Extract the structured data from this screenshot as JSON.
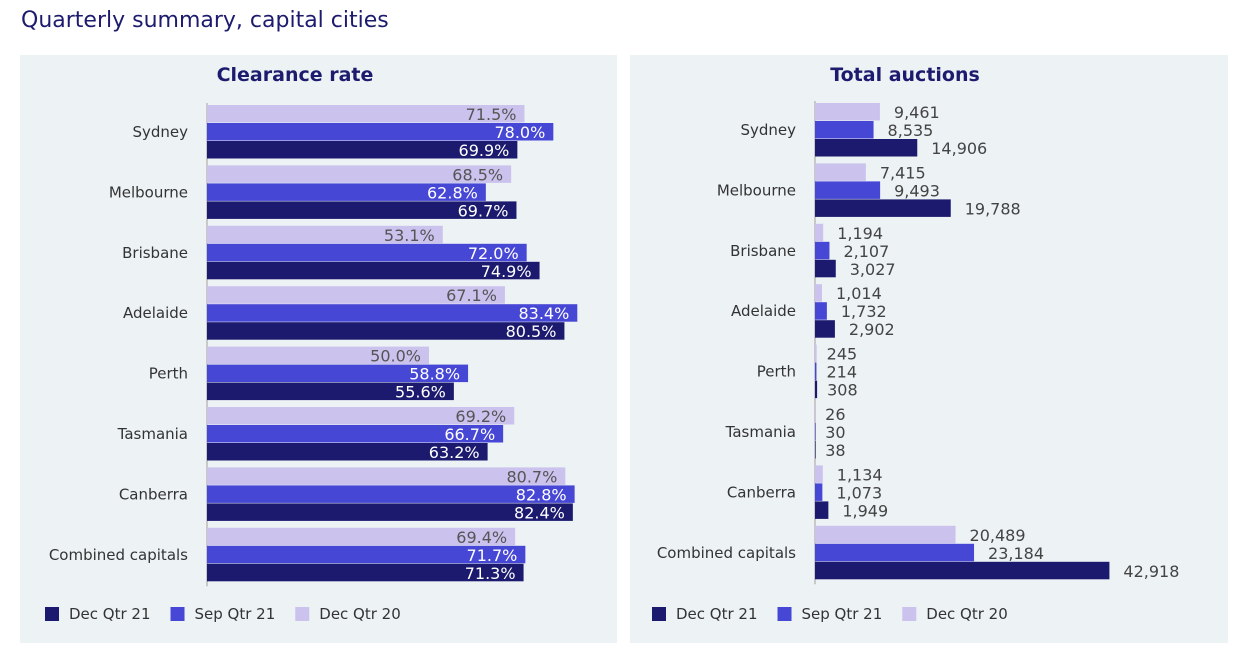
{
  "page_title": "Quarterly summary, capital cities",
  "colors": {
    "Dec Qtr 21": "#1b1a6e",
    "Sep Qtr 21": "#4747d6",
    "Dec Qtr 20": "#cbc2ee",
    "panel": "#edf2f5",
    "title": "#1d1b6e"
  },
  "chart_data": [
    {
      "type": "bar",
      "orientation": "horizontal",
      "title": "Clearance rate",
      "categories": [
        "Sydney",
        "Melbourne",
        "Brisbane",
        "Adelaide",
        "Perth",
        "Tasmania",
        "Canberra",
        "Combined capitals"
      ],
      "series": [
        {
          "name": "Dec Qtr 20",
          "values": [
            71.5,
            68.5,
            53.1,
            67.1,
            50.0,
            69.2,
            80.7,
            69.4
          ],
          "labels": [
            "71.5%",
            "68.5%",
            "53.1%",
            "67.1%",
            "50.0%",
            "69.2%",
            "80.7%",
            "69.4%"
          ]
        },
        {
          "name": "Sep Qtr 21",
          "values": [
            78.0,
            62.8,
            72.0,
            83.4,
            58.8,
            66.7,
            82.8,
            71.7
          ],
          "labels": [
            "78.0%",
            "62.8%",
            "72.0%",
            "83.4%",
            "58.8%",
            "66.7%",
            "82.8%",
            "71.7%"
          ]
        },
        {
          "name": "Dec Qtr 21",
          "values": [
            69.9,
            69.7,
            74.9,
            80.5,
            55.6,
            63.2,
            82.4,
            71.3
          ],
          "labels": [
            "69.9%",
            "69.7%",
            "74.9%",
            "80.5%",
            "55.6%",
            "63.2%",
            "82.4%",
            "71.3%"
          ]
        }
      ],
      "legend": [
        "Dec Qtr 21",
        "Sep Qtr 21",
        "Dec Qtr 20"
      ],
      "legend_placement": "bottom-left",
      "xlim": [
        0,
        100
      ],
      "grid": false
    },
    {
      "type": "bar",
      "orientation": "horizontal",
      "title": "Total auctions",
      "categories": [
        "Sydney",
        "Melbourne",
        "Brisbane",
        "Adelaide",
        "Perth",
        "Tasmania",
        "Canberra",
        "Combined capitals"
      ],
      "series": [
        {
          "name": "Dec Qtr 20",
          "values": [
            9461,
            7415,
            1194,
            1014,
            245,
            26,
            1134,
            20489
          ],
          "labels": [
            "9,461",
            "7,415",
            "1,194",
            "1,014",
            "245",
            "26",
            "1,134",
            "20,489"
          ]
        },
        {
          "name": "Sep Qtr 21",
          "values": [
            8535,
            9493,
            2107,
            1732,
            214,
            30,
            1073,
            23184
          ],
          "labels": [
            "8,535",
            "9,493",
            "2,107",
            "1,732",
            "214",
            "30",
            "1,073",
            "23,184"
          ]
        },
        {
          "name": "Dec Qtr 21",
          "values": [
            14906,
            19788,
            3027,
            2902,
            308,
            38,
            1949,
            42918
          ],
          "labels": [
            "14,906",
            "19,788",
            "3,027",
            "2,902",
            "308",
            "38",
            "1,949",
            "42,918"
          ]
        }
      ],
      "legend": [
        "Dec Qtr 21",
        "Sep Qtr 21",
        "Dec Qtr 20"
      ],
      "legend_placement": "bottom-left",
      "xlim": [
        0,
        50000
      ],
      "grid": false
    }
  ]
}
